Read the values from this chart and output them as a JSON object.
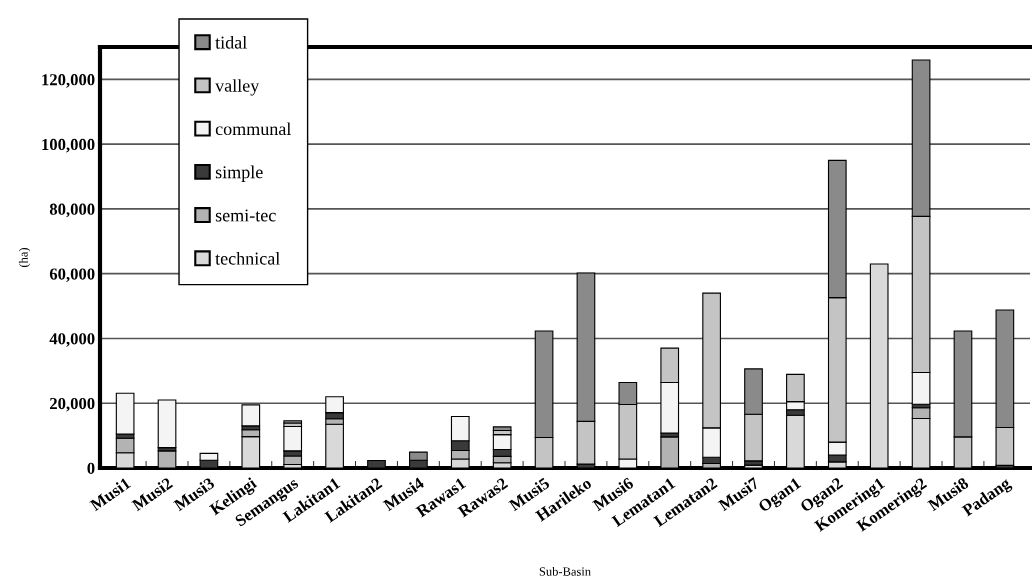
{
  "chart_data": {
    "type": "bar",
    "stacked": true,
    "xlabel": "Sub-Basin",
    "ylabel": "(ha)",
    "categories": [
      "Musi1",
      "Musi2",
      "Musi3",
      "Kelingi",
      "Semangus",
      "Lakitan1",
      "Lakitan2",
      "Musi4",
      "Rawas1",
      "Rawas2",
      "Musi5",
      "Harileko",
      "Musi6",
      "Lematan1",
      "Lematan2",
      "Musi7",
      "Ogan1",
      "Ogan2",
      "Komering1",
      "Komering2",
      "Musi8",
      "Padang"
    ],
    "series": [
      {
        "name": "technical",
        "color": "#d9d9d9",
        "values": [
          4700,
          0,
          0,
          9700,
          1100,
          13500,
          0,
          0,
          2800,
          1600,
          0,
          0,
          0,
          0,
          0,
          900,
          16300,
          1900,
          63000,
          15300,
          0,
          0
        ]
      },
      {
        "name": "semi-tec",
        "color": "#b3b3b3",
        "values": [
          4500,
          5300,
          0,
          2100,
          2600,
          1700,
          0,
          0,
          2600,
          2000,
          0,
          0,
          0,
          9600,
          1400,
          0,
          0,
          0,
          0,
          3300,
          0,
          0
        ]
      },
      {
        "name": "simple",
        "color": "#3a3a3a",
        "values": [
          1300,
          1000,
          2400,
          1200,
          1600,
          1900,
          2300,
          2400,
          3000,
          2100,
          0,
          1200,
          0,
          1200,
          1900,
          1300,
          1700,
          2100,
          0,
          1100,
          0,
          800
        ]
      },
      {
        "name": "communal",
        "color": "#f4f4f4",
        "values": [
          12600,
          14700,
          2100,
          6500,
          7500,
          4900,
          0,
          0,
          7500,
          4600,
          0,
          0,
          2800,
          15600,
          9100,
          0,
          2500,
          4000,
          0,
          9800,
          0,
          0
        ]
      },
      {
        "name": "valley",
        "color": "#c4c4c4",
        "values": [
          0,
          0,
          0,
          0,
          1100,
          0,
          0,
          0,
          0,
          1300,
          9400,
          13200,
          16800,
          10600,
          41600,
          14400,
          8400,
          44600,
          0,
          48200,
          9600,
          11700
        ]
      },
      {
        "name": "tidal",
        "color": "#8a8a8a",
        "values": [
          0,
          0,
          0,
          0,
          700,
          0,
          0,
          2500,
          0,
          1100,
          32900,
          45800,
          6800,
          0,
          0,
          14000,
          0,
          42400,
          0,
          48300,
          32700,
          36300
        ]
      }
    ],
    "ylim": [
      0,
      130000
    ],
    "yticks": [
      0,
      {
        "value": 20000,
        "label": "20,000"
      },
      {
        "value": 40000,
        "label": "40,000"
      },
      {
        "value": 60000,
        "label": "60,000"
      },
      {
        "value": 80000,
        "label": "80,000"
      },
      {
        "value": 100000,
        "label": "100,000"
      },
      {
        "value": 120000,
        "label": "120,000"
      }
    ],
    "grid": "y",
    "legend": "top left"
  }
}
